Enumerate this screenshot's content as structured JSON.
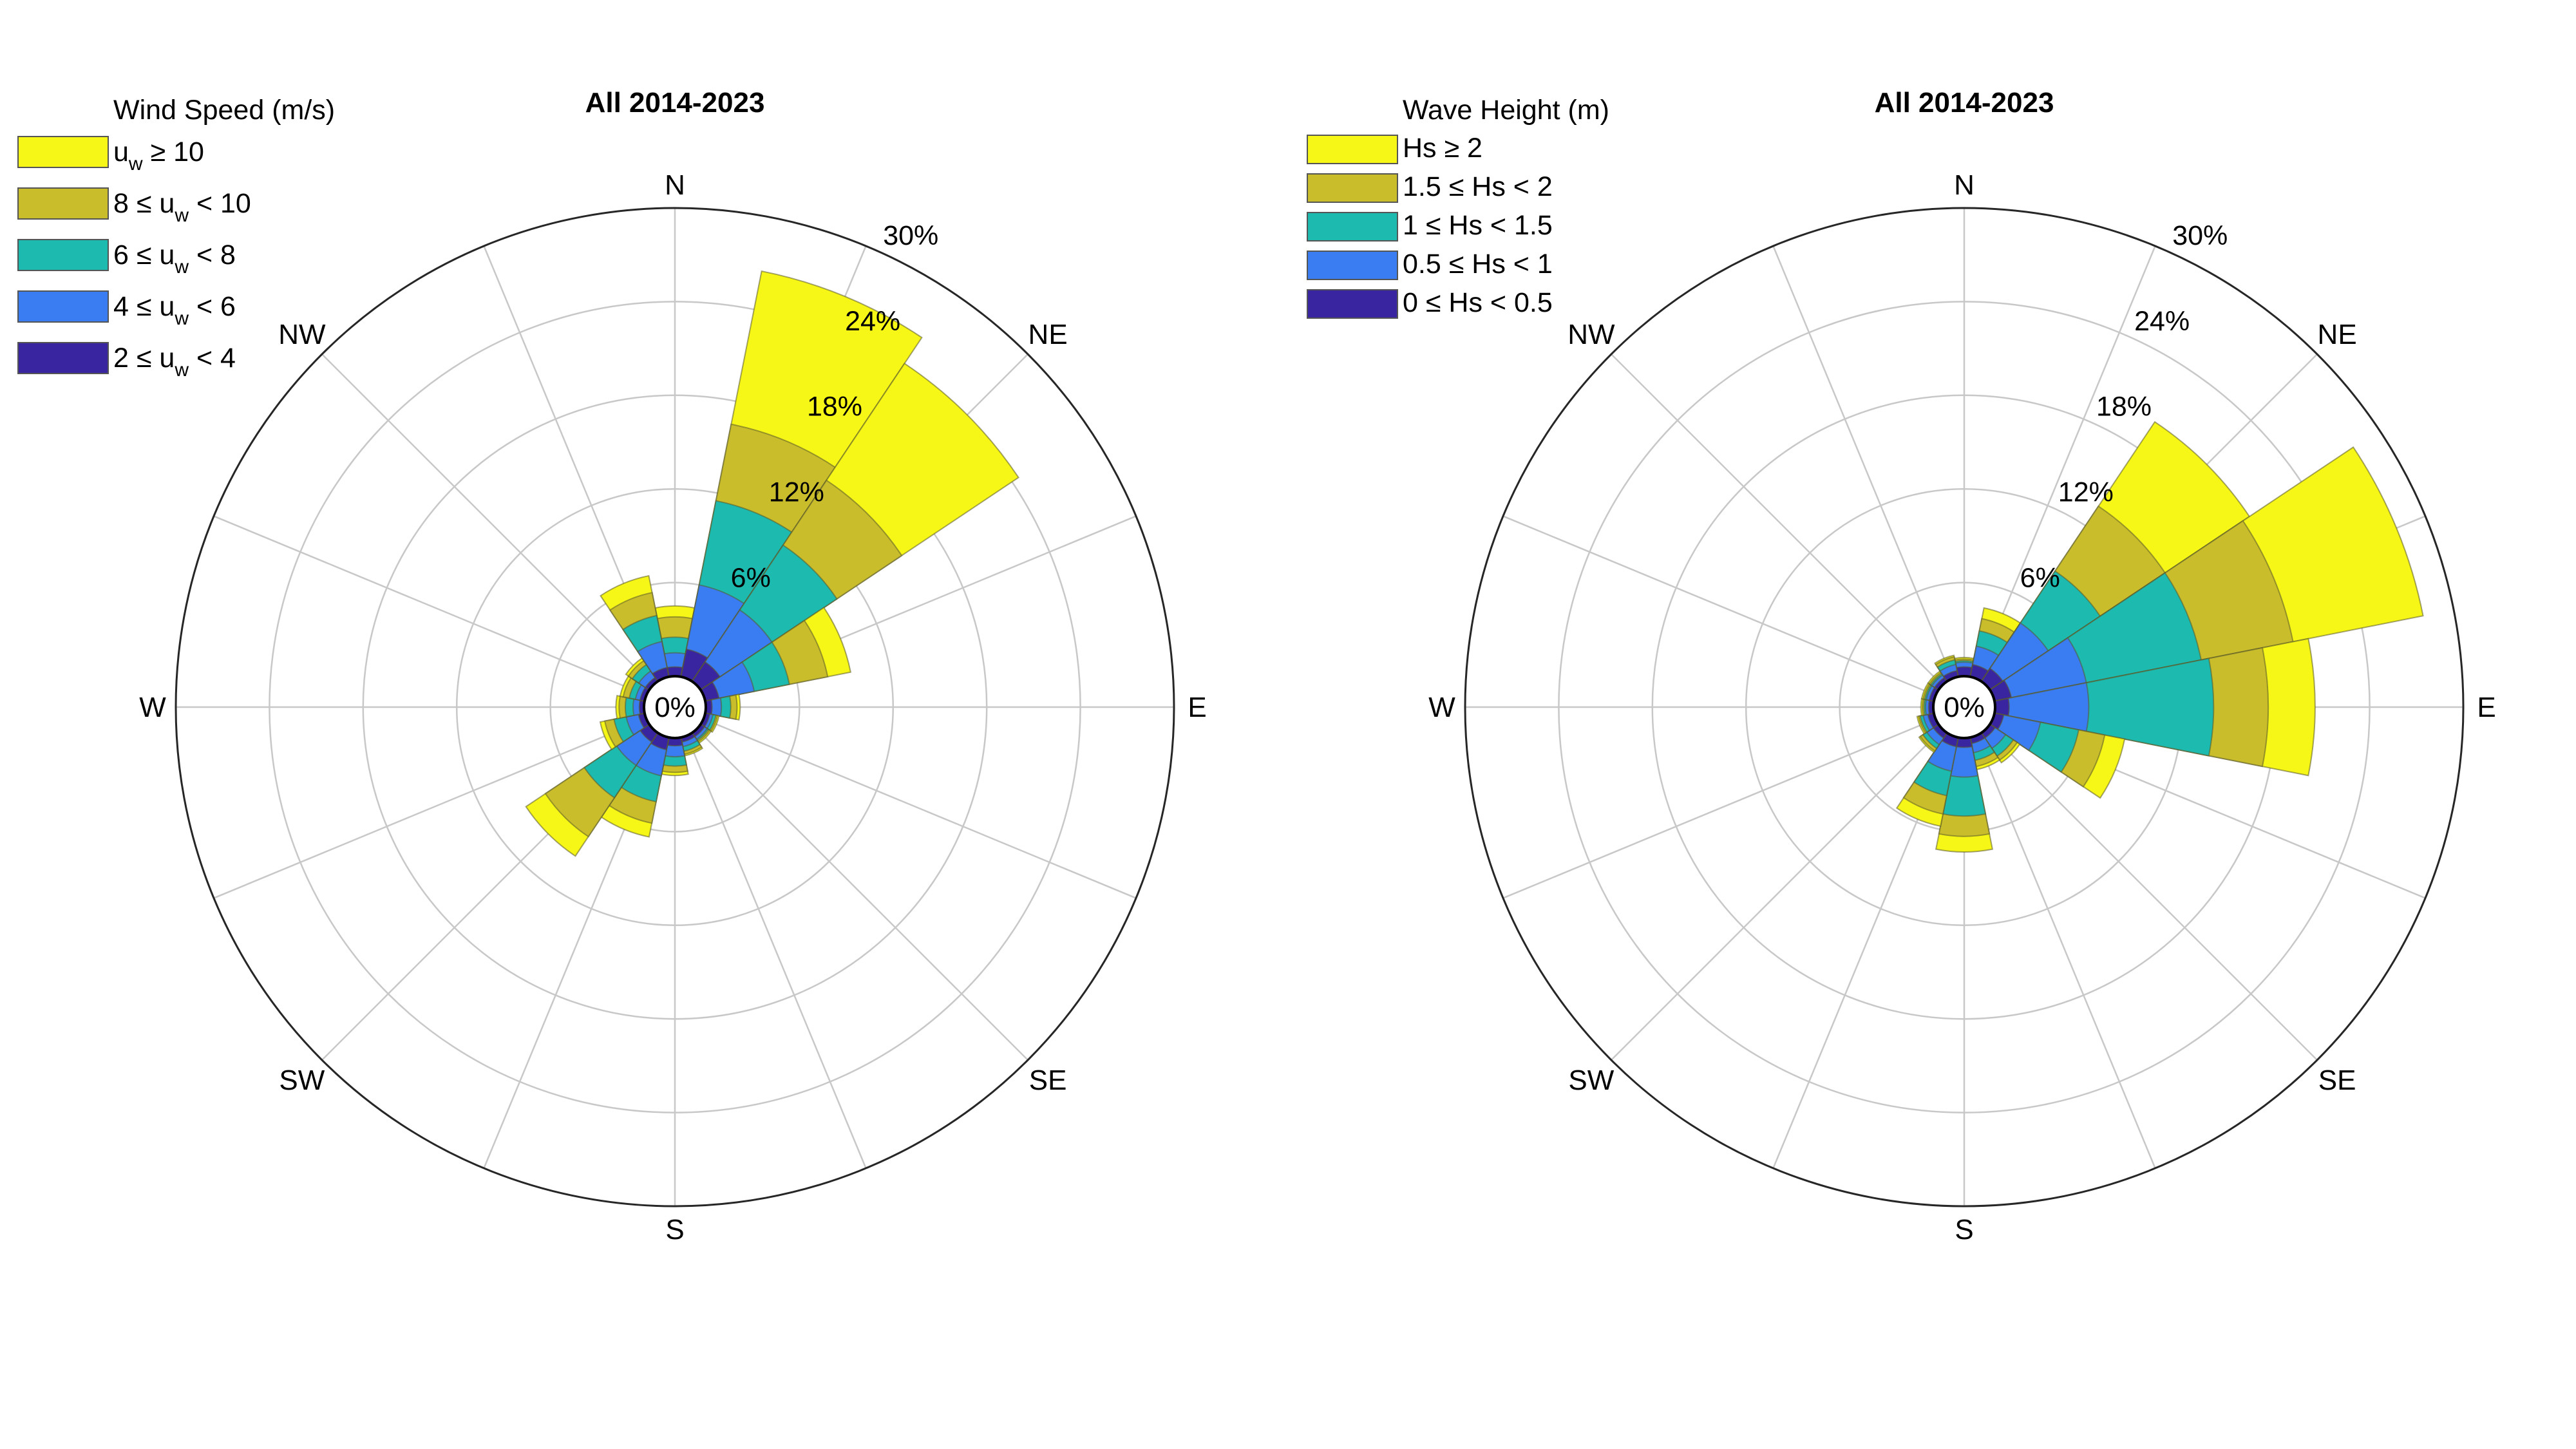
{
  "chart_data": [
    {
      "type": "wind-rose",
      "title": "All 2014-2023",
      "legend_title": "Wind Speed (m/s)",
      "legend_placement": "top-left",
      "center_label": "0%",
      "radial_ticks": [
        "6%",
        "12%",
        "18%",
        "24%",
        "30%"
      ],
      "radial_tick_values": [
        6,
        12,
        18,
        24,
        30
      ],
      "rmax": 30,
      "direction_labels": [
        {
          "label": "N",
          "angle": 0
        },
        {
          "label": "NE",
          "angle": 45
        },
        {
          "label": "E",
          "angle": 90
        },
        {
          "label": "SE",
          "angle": 135
        },
        {
          "label": "S",
          "angle": 180
        },
        {
          "label": "SW",
          "angle": 225
        },
        {
          "label": "W",
          "angle": 270
        },
        {
          "label": "NW",
          "angle": 315
        }
      ],
      "series": [
        {
          "label": [
            "2 ≤ u",
            "w",
            " < 4"
          ],
          "color": "#3a25a0"
        },
        {
          "label": [
            "4 ≤ u",
            "w",
            " < 6"
          ],
          "color": "#3a7cf2"
        },
        {
          "label": [
            "6 ≤ u",
            "w",
            " < 8"
          ],
          "color": "#1dbab0"
        },
        {
          "label": [
            "8 ≤ u",
            "w",
            " < 10"
          ],
          "color": "#c9bd2c"
        },
        {
          "label": [
            "u",
            "w",
            " ≥ 10"
          ],
          "color": "#f7f717"
        }
      ],
      "direction_centers": [
        0,
        22.5,
        45,
        67.5,
        90,
        112.5,
        135,
        157.5,
        180,
        202.5,
        225,
        247.5,
        270,
        292.5,
        315,
        337.5
      ],
      "cumulative_frequencies": [
        [
          0.6,
          1.5,
          2.5,
          3.8,
          4.5
        ],
        [
          1.8,
          6.0,
          11.5,
          16.5,
          26.5
        ],
        [
          1.5,
          5.5,
          10.5,
          15.5,
          24.5
        ],
        [
          0.9,
          3.2,
          5.5,
          8.0,
          9.5
        ],
        [
          0.4,
          1.0,
          1.6,
          2.0,
          2.2
        ],
        [
          0.3,
          0.5,
          0.7,
          0.8,
          0.9
        ],
        [
          0.3,
          0.5,
          0.6,
          0.7,
          0.8
        ],
        [
          0.3,
          0.6,
          0.9,
          1.1,
          1.2
        ],
        [
          0.5,
          1.2,
          1.8,
          2.2,
          2.4
        ],
        [
          0.8,
          2.5,
          4.2,
          5.6,
          6.5
        ],
        [
          0.7,
          2.5,
          5.0,
          8.0,
          9.5
        ],
        [
          0.4,
          1.2,
          2.0,
          2.6,
          2.9
        ],
        [
          0.3,
          0.7,
          1.2,
          1.6,
          1.8
        ],
        [
          0.3,
          0.6,
          1.0,
          1.4,
          1.6
        ],
        [
          0.3,
          0.8,
          1.3,
          1.6,
          1.8
        ],
        [
          0.6,
          2.3,
          4.0,
          5.5,
          6.6
        ]
      ]
    },
    {
      "type": "wind-rose",
      "title": "All 2014-2023",
      "legend_title": "Wave Height (m)",
      "legend_placement": "top-left",
      "center_label": "0%",
      "radial_ticks": [
        "6%",
        "12%",
        "18%",
        "24%",
        "30%"
      ],
      "radial_tick_values": [
        6,
        12,
        18,
        24,
        30
      ],
      "rmax": 30,
      "direction_labels": [
        {
          "label": "N",
          "angle": 0
        },
        {
          "label": "NE",
          "angle": 45
        },
        {
          "label": "E",
          "angle": 90
        },
        {
          "label": "SE",
          "angle": 135
        },
        {
          "label": "S",
          "angle": 180
        },
        {
          "label": "SW",
          "angle": 225
        },
        {
          "label": "W",
          "angle": 270
        },
        {
          "label": "NW",
          "angle": 315
        }
      ],
      "series": [
        {
          "label": [
            "0 ≤ Hs < 0.5"
          ],
          "color": "#3a25a0"
        },
        {
          "label": [
            "0.5 ≤ Hs < 1"
          ],
          "color": "#3a7cf2"
        },
        {
          "label": [
            "1 ≤ Hs < 1.5"
          ],
          "color": "#1dbab0"
        },
        {
          "label": [
            "1.5 ≤ Hs < 2"
          ],
          "color": "#c9bd2c"
        },
        {
          "label": [
            "Hs ≥ 2"
          ],
          "color": "#f7f717"
        }
      ],
      "direction_centers": [
        0,
        22.5,
        45,
        67.5,
        90,
        112.5,
        135,
        157.5,
        180,
        202.5,
        225,
        247.5,
        270,
        292.5,
        315,
        337.5
      ],
      "cumulative_frequencies": [
        [
          0.6,
          0.9,
          1.0,
          1.1,
          1.2
        ],
        [
          0.8,
          2.0,
          3.0,
          3.8,
          4.5
        ],
        [
          1.0,
          4.5,
          8.5,
          13.5,
          20.0
        ],
        [
          1.1,
          6.0,
          13.5,
          19.5,
          28.0
        ],
        [
          0.9,
          6.0,
          14.0,
          17.5,
          20.5
        ],
        [
          0.6,
          3.0,
          5.5,
          7.2,
          8.5
        ],
        [
          0.4,
          1.2,
          1.8,
          2.1,
          2.3
        ],
        [
          0.4,
          1.0,
          1.5,
          1.9,
          2.1
        ],
        [
          0.6,
          2.5,
          5.0,
          6.3,
          7.3
        ],
        [
          0.6,
          2.2,
          3.8,
          5.0,
          5.8
        ],
        [
          0.4,
          0.9,
          1.2,
          1.4,
          1.5
        ],
        [
          0.4,
          0.7,
          0.9,
          1.0,
          1.1
        ],
        [
          0.3,
          0.5,
          0.6,
          0.7,
          0.8
        ],
        [
          0.3,
          0.5,
          0.6,
          0.7,
          0.8
        ],
        [
          0.3,
          0.5,
          0.6,
          0.7,
          0.8
        ],
        [
          0.4,
          0.8,
          1.1,
          1.3,
          1.4
        ]
      ]
    }
  ]
}
